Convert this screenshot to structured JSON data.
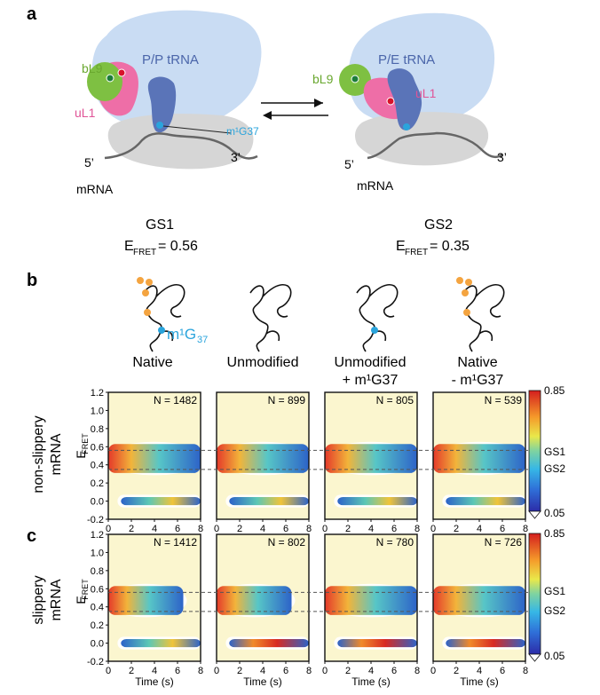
{
  "panels": {
    "a": {
      "label": "a",
      "left": {
        "bL9": "bL9",
        "uL1": "uL1",
        "tRNA": "P/P tRNA",
        "m1G37": "m¹G37",
        "five": "5’",
        "three": "3’",
        "mrna": "mRNA",
        "state": "GS1",
        "efret_main": "E",
        "efret_sub": "FRET",
        "efret_value": "= 0.56"
      },
      "right": {
        "bL9": "bL9",
        "uL1": "uL1",
        "tRNA": "P/E tRNA",
        "five": "5’",
        "three": "3’",
        "mrna": "mRNA",
        "state": "GS2",
        "efret_main": "E",
        "efret_sub": "FRET",
        "efret_value": "= 0.35"
      }
    },
    "b": {
      "label": "b",
      "m1g_label": "m¹G",
      "m1g_sub": "37",
      "conditions": [
        "Native",
        "Unmodified",
        "Unmodified\n+ m¹G37",
        "Native\n- m¹G37"
      ],
      "row_label": [
        "non-slippery",
        "mRNA"
      ],
      "ylabel_main": "E",
      "ylabel_sub": "FRET",
      "n_labels": [
        "N = 1482",
        "N = 899",
        "N = 805",
        "N = 539"
      ]
    },
    "c": {
      "label": "c",
      "row_label": [
        "slippery",
        "mRNA"
      ],
      "ylabel_main": "E",
      "ylabel_sub": "FRET",
      "n_labels": [
        "N = 1412",
        "N = 802",
        "N = 780",
        "N = 726"
      ]
    }
  },
  "xlabel": "Time (s)",
  "y_ticks": [
    "1.2",
    "1.0",
    "0.8",
    "0.6",
    "0.4",
    "0.2",
    "0.0",
    "-0.2"
  ],
  "x_ticks": [
    "0",
    "2",
    "4",
    "6",
    "8"
  ],
  "colorbar": {
    "max": "0.85",
    "min": "0.05",
    "gs1": "GS1",
    "gs2": "GS2"
  },
  "chart_data": [
    {
      "type": "heatmap",
      "title": "non-slippery mRNA",
      "xlabel": "Time (s)",
      "ylabel": "EFRET",
      "xlim": [
        0,
        8
      ],
      "ylim": [
        -0.2,
        1.2
      ],
      "panels": [
        "Native",
        "Unmodified",
        "Unmodified + m1G37",
        "Native - m1G37"
      ],
      "N": [
        1482,
        899,
        805,
        539
      ],
      "reference_lines": {
        "GS1": 0.56,
        "GS2": 0.35
      },
      "color_range": [
        0.05,
        0.85
      ]
    },
    {
      "type": "heatmap",
      "title": "slippery mRNA",
      "xlabel": "Time (s)",
      "ylabel": "EFRET",
      "xlim": [
        0,
        8
      ],
      "ylim": [
        -0.2,
        1.2
      ],
      "panels": [
        "Native",
        "Unmodified",
        "Unmodified + m1G37",
        "Native - m1G37"
      ],
      "N": [
        1412,
        802,
        780,
        726
      ],
      "reference_lines": {
        "GS1": 0.56,
        "GS2": 0.35
      },
      "color_range": [
        0.05,
        0.85
      ]
    }
  ]
}
